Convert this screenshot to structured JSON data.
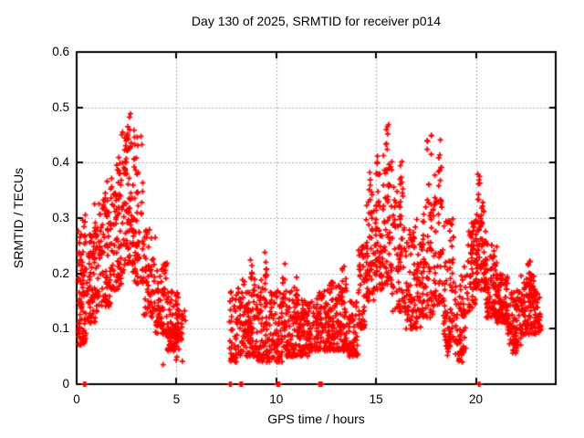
{
  "chart_data": {
    "type": "scatter",
    "title": "Day 130 of 2025, SRMTID for receiver p014",
    "xlabel": "GPS time / hours",
    "ylabel": "SRMTID / TECUs",
    "xlim": [
      0,
      24
    ],
    "ylim": [
      0,
      0.6
    ],
    "xticks": {
      "values": [
        0,
        5,
        10,
        15,
        20
      ],
      "labels": [
        "0",
        "5",
        "10",
        "15",
        "20"
      ]
    },
    "yticks": {
      "values": [
        0,
        0.1,
        0.2,
        0.3,
        0.4,
        0.5,
        0.6
      ],
      "labels": [
        "0",
        "0.1",
        "0.2",
        "0.3",
        "0.4",
        "0.5",
        "0.6"
      ]
    },
    "grid": {
      "visible": true,
      "style": "dotted",
      "color": "#b0b0b0",
      "x_at": [
        5,
        10,
        15,
        20
      ],
      "y_at": [
        0.1,
        0.2,
        0.3,
        0.4,
        0.5
      ]
    },
    "marker": {
      "shape": "plus",
      "size": 7,
      "color": "#ff0000"
    },
    "axis_color": "#000000",
    "background": "#ffffff",
    "legend": "none",
    "seed": 1337,
    "clusters": [
      {
        "t": [
          0.05,
          0.5
        ],
        "v": [
          0.07,
          0.32
        ],
        "n": 90
      },
      {
        "t": [
          0.25,
          0.45
        ],
        "v": [
          0,
          0
        ],
        "n": 4
      },
      {
        "t": [
          0.5,
          1.1
        ],
        "v": [
          0.11,
          0.27
        ],
        "n": 85
      },
      {
        "t": [
          0.85,
          1.05
        ],
        "v": [
          0.27,
          0.33
        ],
        "n": 8
      },
      {
        "t": [
          1.1,
          1.7
        ],
        "v": [
          0.14,
          0.33
        ],
        "n": 75
      },
      {
        "t": [
          1.3,
          1.55
        ],
        "v": [
          0.3,
          0.385
        ],
        "n": 12
      },
      {
        "t": [
          1.7,
          2.25
        ],
        "v": [
          0.17,
          0.38
        ],
        "n": 75
      },
      {
        "t": [
          2.0,
          2.2
        ],
        "v": [
          0.38,
          0.44
        ],
        "n": 7
      },
      {
        "t": [
          2.25,
          2.9
        ],
        "v": [
          0.2,
          0.46
        ],
        "n": 90
      },
      {
        "t": [
          2.45,
          2.7
        ],
        "v": [
          0.42,
          0.505
        ],
        "n": 10
      },
      {
        "t": [
          2.9,
          3.35
        ],
        "v": [
          0.18,
          0.45
        ],
        "n": 55
      },
      {
        "t": [
          3.35,
          3.95
        ],
        "v": [
          0.12,
          0.28
        ],
        "n": 60
      },
      {
        "t": [
          3.95,
          4.55
        ],
        "v": [
          0.09,
          0.22
        ],
        "n": 70
      },
      {
        "t": [
          4.55,
          5.15
        ],
        "v": [
          0.06,
          0.17
        ],
        "n": 85
      },
      {
        "t": [
          5.0,
          5.45
        ],
        "v": [
          0.08,
          0.14
        ],
        "n": 30
      },
      {
        "t": [
          4.3,
          4.35
        ],
        "v": [
          0.035,
          0.045
        ],
        "n": 1
      },
      {
        "t": [
          4.95,
          5.05
        ],
        "v": [
          0.03,
          0.05
        ],
        "n": 2
      },
      {
        "t": [
          5.2,
          5.3
        ],
        "v": [
          0.04,
          0.06
        ],
        "n": 1
      },
      {
        "t": [
          7.62,
          7.78
        ],
        "v": [
          0,
          0
        ],
        "n": 7
      },
      {
        "t": [
          8.17,
          8.32
        ],
        "v": [
          0,
          0
        ],
        "n": 7
      },
      {
        "t": [
          7.65,
          8.05
        ],
        "v": [
          0.04,
          0.17
        ],
        "n": 45
      },
      {
        "t": [
          8.05,
          8.5
        ],
        "v": [
          0.05,
          0.19
        ],
        "n": 50
      },
      {
        "t": [
          8.5,
          9.0
        ],
        "v": [
          0.05,
          0.2
        ],
        "n": 65
      },
      {
        "t": [
          8.65,
          8.8
        ],
        "v": [
          0.19,
          0.23
        ],
        "n": 5
      },
      {
        "t": [
          9.0,
          9.6
        ],
        "v": [
          0.04,
          0.19
        ],
        "n": 75
      },
      {
        "t": [
          9.4,
          9.55
        ],
        "v": [
          0.19,
          0.26
        ],
        "n": 8
      },
      {
        "t": [
          9.6,
          10.45
        ],
        "v": [
          0.04,
          0.17
        ],
        "n": 95
      },
      {
        "t": [
          9.98,
          10.18
        ],
        "v": [
          0,
          0
        ],
        "n": 5
      },
      {
        "t": [
          10.25,
          10.45
        ],
        "v": [
          0.15,
          0.22
        ],
        "n": 8
      },
      {
        "t": [
          10.45,
          11.25
        ],
        "v": [
          0.05,
          0.17
        ],
        "n": 95
      },
      {
        "t": [
          10.9,
          11.1
        ],
        "v": [
          0.16,
          0.2
        ],
        "n": 6
      },
      {
        "t": [
          11.25,
          12.05
        ],
        "v": [
          0.05,
          0.16
        ],
        "n": 95
      },
      {
        "t": [
          12.1,
          12.3
        ],
        "v": [
          0,
          0
        ],
        "n": 4
      },
      {
        "t": [
          12.05,
          12.9
        ],
        "v": [
          0.06,
          0.17
        ],
        "n": 100
      },
      {
        "t": [
          12.65,
          12.85
        ],
        "v": [
          0.17,
          0.2
        ],
        "n": 6
      },
      {
        "t": [
          12.9,
          13.6
        ],
        "v": [
          0.06,
          0.18
        ],
        "n": 85
      },
      {
        "t": [
          13.3,
          13.5
        ],
        "v": [
          0.18,
          0.215
        ],
        "n": 6
      },
      {
        "t": [
          13.6,
          14.1
        ],
        "v": [
          0.05,
          0.15
        ],
        "n": 55
      },
      {
        "t": [
          14.1,
          14.45
        ],
        "v": [
          0.1,
          0.25
        ],
        "n": 45
      },
      {
        "t": [
          14.45,
          14.95
        ],
        "v": [
          0.15,
          0.34
        ],
        "n": 60
      },
      {
        "t": [
          14.6,
          14.8
        ],
        "v": [
          0.34,
          0.385
        ],
        "n": 6
      },
      {
        "t": [
          14.95,
          15.35
        ],
        "v": [
          0.17,
          0.38
        ],
        "n": 55
      },
      {
        "t": [
          15.0,
          15.15
        ],
        "v": [
          0.38,
          0.42
        ],
        "n": 4
      },
      {
        "t": [
          15.35,
          15.8
        ],
        "v": [
          0.18,
          0.42
        ],
        "n": 55
      },
      {
        "t": [
          15.5,
          15.7
        ],
        "v": [
          0.42,
          0.47
        ],
        "n": 7
      },
      {
        "t": [
          15.8,
          16.5
        ],
        "v": [
          0.13,
          0.36
        ],
        "n": 75
      },
      {
        "t": [
          16.05,
          16.3
        ],
        "v": [
          0.36,
          0.41
        ],
        "n": 6
      },
      {
        "t": [
          16.5,
          17.25
        ],
        "v": [
          0.1,
          0.3
        ],
        "n": 85
      },
      {
        "t": [
          17.25,
          17.85
        ],
        "v": [
          0.12,
          0.33
        ],
        "n": 70
      },
      {
        "t": [
          17.55,
          17.8
        ],
        "v": [
          0.33,
          0.455
        ],
        "n": 9
      },
      {
        "t": [
          17.85,
          18.35
        ],
        "v": [
          0.14,
          0.38
        ],
        "n": 55
      },
      {
        "t": [
          18.1,
          18.3
        ],
        "v": [
          0.38,
          0.465
        ],
        "n": 7
      },
      {
        "t": [
          18.35,
          18.95
        ],
        "v": [
          0.08,
          0.3
        ],
        "n": 65
      },
      {
        "t": [
          18.45,
          18.9
        ],
        "v": [
          0.05,
          0.09
        ],
        "n": 14
      },
      {
        "t": [
          18.95,
          19.55
        ],
        "v": [
          0.05,
          0.22
        ],
        "n": 60
      },
      {
        "t": [
          19.1,
          19.4
        ],
        "v": [
          0.035,
          0.07
        ],
        "n": 8
      },
      {
        "t": [
          19.55,
          20.0
        ],
        "v": [
          0.13,
          0.3
        ],
        "n": 55
      },
      {
        "t": [
          20.0,
          20.5
        ],
        "v": [
          0.17,
          0.33
        ],
        "n": 85
      },
      {
        "t": [
          20.02,
          20.22
        ],
        "v": [
          0.33,
          0.395
        ],
        "n": 9
      },
      {
        "t": [
          20.05,
          20.2
        ],
        "v": [
          0,
          0
        ],
        "n": 4
      },
      {
        "t": [
          20.5,
          21.05
        ],
        "v": [
          0.12,
          0.26
        ],
        "n": 75
      },
      {
        "t": [
          21.05,
          21.6
        ],
        "v": [
          0.11,
          0.2
        ],
        "n": 90
      },
      {
        "t": [
          21.6,
          22.25
        ],
        "v": [
          0.07,
          0.17
        ],
        "n": 75
      },
      {
        "t": [
          21.8,
          22.05
        ],
        "v": [
          0.055,
          0.09
        ],
        "n": 10
      },
      {
        "t": [
          22.25,
          22.95
        ],
        "v": [
          0.09,
          0.2
        ],
        "n": 95
      },
      {
        "t": [
          22.6,
          22.8
        ],
        "v": [
          0.2,
          0.225
        ],
        "n": 5
      },
      {
        "t": [
          22.95,
          23.25
        ],
        "v": [
          0.09,
          0.17
        ],
        "n": 40
      }
    ]
  }
}
